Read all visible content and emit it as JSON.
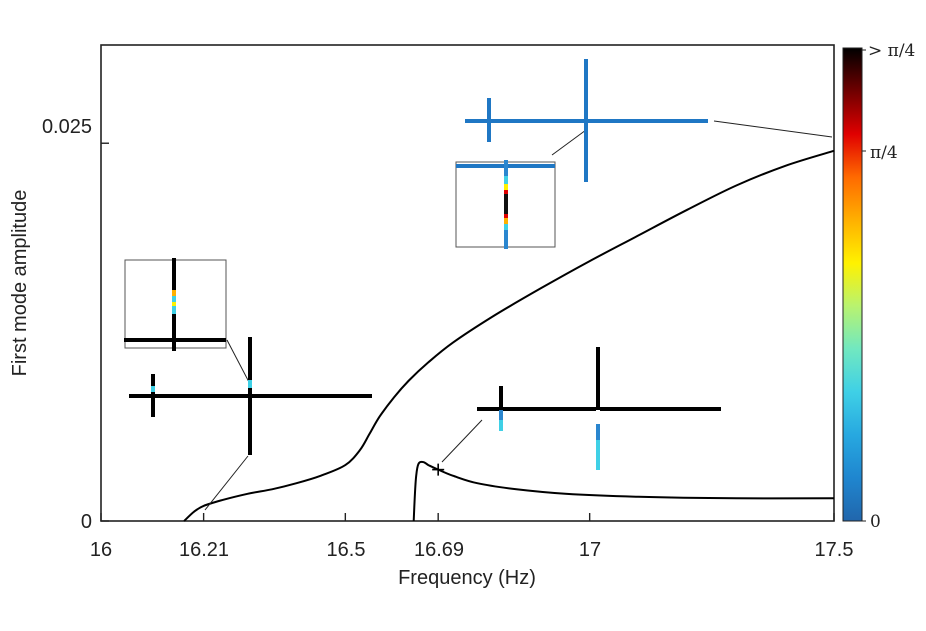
{
  "chart_data": {
    "type": "line",
    "title": "",
    "xlabel": "Frequency (Hz)",
    "ylabel": "First mode amplitude",
    "xlim": [
      16,
      17.5
    ],
    "ylim": [
      0,
      0.0315
    ],
    "grid": false,
    "x_ticks": [
      {
        "value": 16,
        "label": "16"
      },
      {
        "value": 16.21,
        "label": "16.21"
      },
      {
        "value": 16.5,
        "label": "16.5"
      },
      {
        "value": 16.69,
        "label": "16.69"
      },
      {
        "value": 17,
        "label": "17"
      },
      {
        "value": 17.5,
        "label": "17.5"
      }
    ],
    "y_ticks": [
      {
        "value": 0,
        "label": "0"
      },
      {
        "value": 0.025,
        "label": "0.025"
      }
    ],
    "series": [
      {
        "x": [
          16.17,
          16.19,
          16.21,
          16.25,
          16.3,
          16.35,
          16.4,
          16.45,
          16.5,
          16.53,
          16.55,
          16.57,
          16.6,
          16.63,
          16.67,
          16.72,
          16.8,
          16.9,
          17.0,
          17.1,
          17.2,
          17.3,
          17.4,
          17.5
        ],
        "y": [
          0,
          0.0006,
          0.001,
          0.0014,
          0.0018,
          0.0021,
          0.0025,
          0.003,
          0.0037,
          0.0047,
          0.0058,
          0.0069,
          0.0082,
          0.0093,
          0.0105,
          0.0118,
          0.0135,
          0.0154,
          0.0172,
          0.0189,
          0.0206,
          0.0222,
          0.0235,
          0.0245
        ]
      },
      {
        "x": [
          16.64,
          16.642,
          16.645,
          16.65,
          16.66,
          16.67,
          16.69,
          16.72,
          16.77,
          16.85,
          16.95,
          17.1,
          17.3,
          17.5
        ],
        "y": [
          0,
          0.0015,
          0.003,
          0.0038,
          0.0039,
          0.0037,
          0.0034,
          0.003,
          0.0025,
          0.0021,
          0.0018,
          0.0016,
          0.0015,
          0.0015
        ]
      }
    ],
    "marker": {
      "x": 16.69,
      "y": 0.0034
    },
    "colorbar": {
      "colors": [
        "#2166ac",
        "#1f86cf",
        "#27a8e0",
        "#3fd0e6",
        "#71e8c0",
        "#b9f36f",
        "#fff200",
        "#ffb000",
        "#ff6a00",
        "#e00000",
        "#700000",
        "#000000"
      ],
      "tick_labels": [
        "0",
        "π/4",
        "> π/4"
      ]
    }
  }
}
